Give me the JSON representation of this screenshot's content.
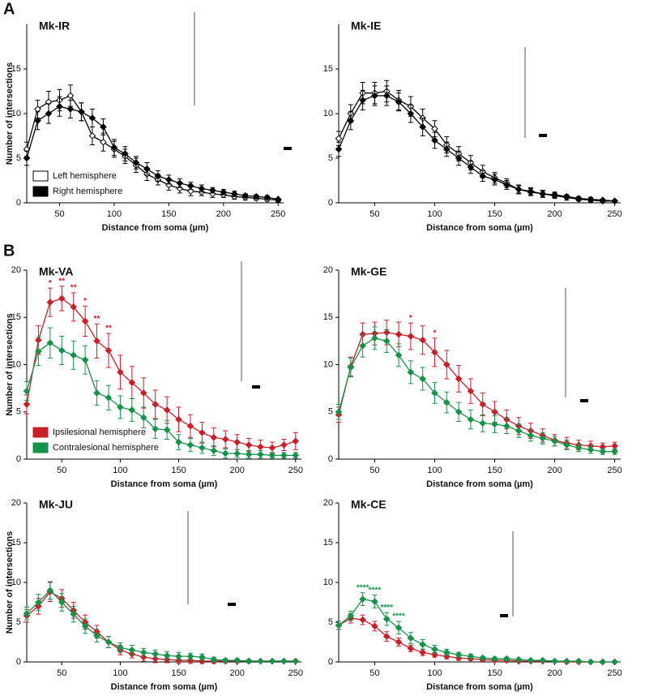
{
  "figure": {
    "panel_labels": [
      "A",
      "B"
    ]
  },
  "chart_data": [
    {
      "type": "line",
      "title": "Mk-IR",
      "xlabel": "Distance from soma (µm)",
      "ylabel": "Number of intersections",
      "x": [
        20,
        30,
        40,
        50,
        60,
        70,
        80,
        90,
        100,
        110,
        120,
        130,
        140,
        150,
        160,
        170,
        180,
        190,
        200,
        210,
        220,
        230,
        240,
        250
      ],
      "xlim": [
        20,
        255
      ],
      "ylim": [
        0,
        20
      ],
      "xticks": [
        50,
        100,
        150,
        200,
        250
      ],
      "yticks": [
        0,
        5,
        10,
        15
      ],
      "legend": "lower-left",
      "series": [
        {
          "name": "Left hemisphere",
          "color": "#ffffff",
          "line_color": "#000000",
          "values": [
            6.0,
            10.5,
            11.3,
            11.5,
            12.0,
            10.2,
            7.5,
            6.8,
            6.0,
            5.2,
            4.2,
            3.2,
            2.6,
            2.0,
            1.6,
            1.3,
            1.2,
            1.0,
            0.9,
            0.7,
            0.6,
            0.5,
            0.4,
            0.3
          ],
          "errors": [
            0.8,
            1.0,
            1.2,
            1.2,
            1.2,
            1.0,
            1.0,
            1.0,
            0.9,
            0.8,
            0.8,
            0.7,
            0.6,
            0.6,
            0.5,
            0.5,
            0.4,
            0.4,
            0.3,
            0.3,
            0.3,
            0.2,
            0.2,
            0.2
          ]
        },
        {
          "name": "Right hemisphere",
          "color": "#000000",
          "line_color": "#000000",
          "values": [
            5.0,
            9.2,
            10.0,
            10.8,
            10.5,
            10.2,
            9.5,
            8.5,
            6.2,
            5.5,
            4.5,
            3.8,
            3.0,
            2.6,
            2.2,
            1.9,
            1.6,
            1.4,
            1.2,
            1.0,
            0.8,
            0.7,
            0.6,
            0.4
          ],
          "errors": [
            0.8,
            1.0,
            1.1,
            1.1,
            1.0,
            1.0,
            1.0,
            0.9,
            0.9,
            0.8,
            0.7,
            0.7,
            0.6,
            0.5,
            0.5,
            0.4,
            0.4,
            0.3,
            0.3,
            0.3,
            0.2,
            0.2,
            0.2,
            0.1
          ]
        }
      ]
    },
    {
      "type": "line",
      "title": "Mk-IE",
      "xlabel": "Distance from soma (µm)",
      "x": [
        20,
        30,
        40,
        50,
        60,
        70,
        80,
        90,
        100,
        110,
        120,
        130,
        140,
        150,
        160,
        170,
        180,
        190,
        200,
        210,
        220,
        230,
        240,
        250
      ],
      "xlim": [
        20,
        255
      ],
      "ylim": [
        0,
        20
      ],
      "xticks": [
        50,
        100,
        150,
        200,
        250
      ],
      "yticks": [
        0,
        5,
        10,
        15
      ],
      "series": [
        {
          "color": "#ffffff",
          "line_color": "#000000",
          "values": [
            7.2,
            10.0,
            12.3,
            12.3,
            12.5,
            11.5,
            10.8,
            9.5,
            8.3,
            6.5,
            5.5,
            4.5,
            3.5,
            2.8,
            2.2,
            1.5,
            1.2,
            1.0,
            0.8,
            0.6,
            0.4,
            0.3,
            0.2,
            0.2
          ],
          "errors": [
            0.8,
            1.0,
            1.2,
            1.2,
            1.2,
            1.1,
            1.1,
            1.0,
            0.9,
            0.9,
            0.8,
            0.8,
            0.7,
            0.6,
            0.5,
            0.5,
            0.4,
            0.4,
            0.3,
            0.3,
            0.2,
            0.2,
            0.2,
            0.1
          ]
        },
        {
          "color": "#000000",
          "line_color": "#000000",
          "values": [
            6.0,
            9.2,
            11.5,
            12.0,
            12.0,
            11.3,
            10.0,
            8.5,
            7.0,
            6.0,
            5.0,
            4.0,
            3.0,
            2.6,
            2.0,
            1.5,
            1.3,
            1.0,
            0.9,
            0.7,
            0.5,
            0.4,
            0.3,
            0.2
          ],
          "errors": [
            0.8,
            1.0,
            1.1,
            1.1,
            1.1,
            1.0,
            1.0,
            1.0,
            0.9,
            0.8,
            0.8,
            0.7,
            0.6,
            0.6,
            0.5,
            0.4,
            0.4,
            0.3,
            0.3,
            0.2,
            0.2,
            0.2,
            0.1,
            0.1
          ]
        }
      ]
    },
    {
      "type": "line",
      "title": "Mk-VA",
      "xlabel": "Distance from soma (µm)",
      "ylabel": "Number of intersections",
      "x": [
        20,
        30,
        40,
        50,
        60,
        70,
        80,
        90,
        100,
        110,
        120,
        130,
        140,
        150,
        160,
        170,
        180,
        190,
        200,
        210,
        220,
        230,
        240,
        250
      ],
      "xlim": [
        20,
        255
      ],
      "ylim": [
        0,
        20
      ],
      "xticks": [
        50,
        100,
        150,
        200,
        250
      ],
      "yticks": [
        0,
        5,
        10,
        15,
        20
      ],
      "legend": "lower-left",
      "series": [
        {
          "name": "Ipsilesional hemisphere",
          "color": "#c8202a",
          "line_color": "#c8202a",
          "values": [
            5.8,
            12.6,
            16.6,
            17.0,
            16.1,
            14.6,
            12.5,
            11.5,
            9.2,
            8.1,
            7.0,
            5.8,
            5.2,
            4.2,
            3.5,
            2.8,
            2.3,
            2.1,
            1.8,
            1.5,
            1.3,
            1.2,
            1.5,
            1.9
          ],
          "errors": [
            1.0,
            1.5,
            1.5,
            1.3,
            1.5,
            1.6,
            1.8,
            1.8,
            1.8,
            1.7,
            1.6,
            1.5,
            1.4,
            1.3,
            1.2,
            1.1,
            1.0,
            0.9,
            0.8,
            0.7,
            0.7,
            0.6,
            0.6,
            0.9
          ],
          "significance": [
            null,
            null,
            "*",
            "**",
            "**",
            "*",
            "**",
            "**",
            null,
            null,
            null,
            null,
            null,
            null,
            null,
            null,
            null,
            null,
            null,
            null,
            null,
            null,
            null,
            null
          ]
        },
        {
          "name": "Contralesional hemisphere",
          "color": "#17924a",
          "line_color": "#17924a",
          "values": [
            7.2,
            11.4,
            12.3,
            11.5,
            11.0,
            10.5,
            7.0,
            6.5,
            5.5,
            5.2,
            4.4,
            3.2,
            3.1,
            1.8,
            1.5,
            1.2,
            0.9,
            0.6,
            0.6,
            0.5,
            0.5,
            0.4,
            0.4,
            0.4
          ],
          "errors": [
            1.0,
            1.5,
            1.6,
            1.5,
            1.5,
            1.5,
            1.3,
            1.3,
            1.2,
            1.2,
            1.1,
            1.0,
            1.0,
            0.8,
            0.7,
            0.6,
            0.5,
            0.5,
            0.4,
            0.4,
            0.4,
            0.3,
            0.3,
            0.3
          ]
        }
      ]
    },
    {
      "type": "line",
      "title": "Mk-GE",
      "xlabel": "Distance from soma (µm)",
      "x": [
        20,
        30,
        40,
        50,
        60,
        70,
        80,
        90,
        100,
        110,
        120,
        130,
        140,
        150,
        160,
        170,
        180,
        190,
        200,
        210,
        220,
        230,
        240,
        250
      ],
      "xlim": [
        20,
        255
      ],
      "ylim": [
        0,
        20
      ],
      "xticks": [
        50,
        100,
        150,
        200,
        250
      ],
      "yticks": [
        0,
        5,
        10,
        15,
        20
      ],
      "series": [
        {
          "color": "#c8202a",
          "line_color": "#c8202a",
          "values": [
            4.7,
            9.8,
            13.2,
            13.3,
            13.4,
            13.2,
            13.0,
            12.6,
            11.3,
            10.0,
            8.5,
            7.2,
            5.8,
            5.0,
            4.2,
            3.5,
            3.0,
            2.5,
            2.0,
            1.7,
            1.5,
            1.4,
            1.3,
            1.4
          ],
          "errors": [
            0.8,
            1.0,
            1.2,
            1.2,
            1.3,
            1.3,
            1.4,
            1.5,
            1.5,
            1.5,
            1.4,
            1.3,
            1.2,
            1.1,
            1.0,
            0.9,
            0.8,
            0.7,
            0.6,
            0.6,
            0.5,
            0.5,
            0.4,
            0.4
          ],
          "significance": [
            null,
            null,
            null,
            null,
            null,
            null,
            "*",
            null,
            "*",
            null,
            null,
            null,
            null,
            null,
            null,
            null,
            null,
            null,
            null,
            null,
            null,
            null,
            null,
            null
          ]
        },
        {
          "color": "#17924a",
          "line_color": "#17924a",
          "values": [
            5.0,
            9.7,
            12.0,
            12.8,
            12.5,
            11.0,
            9.2,
            8.5,
            7.0,
            6.0,
            5.0,
            4.2,
            3.8,
            3.7,
            3.5,
            3.0,
            2.5,
            2.2,
            1.9,
            1.5,
            1.2,
            1.0,
            0.8,
            0.8
          ],
          "errors": [
            0.8,
            1.0,
            1.2,
            1.2,
            1.2,
            1.2,
            1.2,
            1.2,
            1.1,
            1.1,
            1.0,
            1.0,
            0.9,
            0.9,
            0.8,
            0.7,
            0.6,
            0.6,
            0.5,
            0.5,
            0.4,
            0.4,
            0.3,
            0.3
          ]
        }
      ]
    },
    {
      "type": "line",
      "title": "Mk-JU",
      "xlabel": "Distance from soma (µm)",
      "ylabel": "Number of intersections",
      "x": [
        20,
        30,
        40,
        50,
        60,
        70,
        80,
        90,
        100,
        110,
        120,
        130,
        140,
        150,
        160,
        170,
        180,
        190,
        200,
        210,
        220,
        230,
        240,
        250
      ],
      "xlim": [
        20,
        255
      ],
      "ylim": [
        0,
        20
      ],
      "xticks": [
        50,
        100,
        150,
        200,
        250
      ],
      "yticks": [
        0,
        5,
        10,
        15,
        20
      ],
      "series": [
        {
          "color": "#c8202a",
          "line_color": "#c8202a",
          "values": [
            5.8,
            7.0,
            8.8,
            8.0,
            6.5,
            5.0,
            3.8,
            2.5,
            1.5,
            1.0,
            0.6,
            0.4,
            0.3,
            0.2,
            0.2,
            0.1,
            0.1,
            0.1,
            0.1,
            0.1,
            0.1,
            0.1,
            0.1,
            0.1
          ],
          "errors": [
            0.8,
            1.0,
            1.2,
            1.1,
            1.0,
            0.9,
            0.8,
            0.7,
            0.6,
            0.5,
            0.5,
            0.5,
            0.4,
            0.4,
            0.4,
            0.3,
            0.3,
            0.2,
            0.2,
            0.2,
            0.1,
            0.1,
            0.1,
            0.1
          ]
        },
        {
          "color": "#17924a",
          "line_color": "#17924a",
          "values": [
            6.1,
            7.5,
            9.0,
            7.5,
            6.0,
            4.5,
            3.3,
            2.5,
            1.8,
            1.5,
            1.2,
            1.0,
            0.8,
            0.7,
            0.7,
            0.6,
            0.3,
            0.2,
            0.2,
            0.1,
            0.1,
            0.1,
            0.1,
            0.1
          ],
          "errors": [
            0.8,
            1.0,
            1.1,
            1.1,
            1.0,
            0.9,
            0.8,
            0.7,
            0.6,
            0.6,
            0.5,
            0.5,
            0.5,
            0.5,
            0.4,
            0.4,
            0.3,
            0.2,
            0.2,
            0.2,
            0.1,
            0.1,
            0.1,
            0.1
          ]
        }
      ]
    },
    {
      "type": "line",
      "title": "Mk-CE",
      "xlabel": "Distance from soma (µm)",
      "x": [
        20,
        30,
        40,
        50,
        60,
        70,
        80,
        90,
        100,
        110,
        120,
        130,
        140,
        150,
        160,
        170,
        180,
        190,
        200,
        210,
        220,
        230,
        240,
        250
      ],
      "xlim": [
        20,
        255
      ],
      "ylim": [
        0,
        20
      ],
      "xticks": [
        50,
        100,
        150,
        200,
        250
      ],
      "yticks": [
        0,
        5,
        10,
        15,
        20
      ],
      "series": [
        {
          "color": "#c8202a",
          "line_color": "#c8202a",
          "values": [
            4.6,
            5.5,
            5.3,
            4.5,
            3.2,
            2.5,
            1.7,
            1.2,
            0.9,
            0.7,
            0.5,
            0.4,
            0.3,
            0.2,
            0.2,
            0.1,
            0.1,
            0.1,
            0.1,
            0.0,
            0.0,
            0.0,
            0.0,
            0.0
          ],
          "errors": [
            0.5,
            0.6,
            0.6,
            0.6,
            0.6,
            0.5,
            0.4,
            0.4,
            0.3,
            0.3,
            0.3,
            0.2,
            0.2,
            0.2,
            0.1,
            0.1,
            0.1,
            0.1,
            0.1,
            0.1,
            0.1,
            0.1,
            0.1,
            0.1
          ]
        },
        {
          "color": "#17924a",
          "line_color": "#17924a",
          "values": [
            4.6,
            5.8,
            7.9,
            7.6,
            5.4,
            4.3,
            3.0,
            2.2,
            1.6,
            1.2,
            0.9,
            0.7,
            0.5,
            0.4,
            0.4,
            0.3,
            0.2,
            0.2,
            0.1,
            0.1,
            0.1,
            0.0,
            0.0,
            0.0
          ],
          "errors": [
            0.5,
            0.6,
            0.8,
            0.8,
            0.8,
            0.8,
            0.7,
            0.6,
            0.5,
            0.4,
            0.3,
            0.3,
            0.2,
            0.2,
            0.2,
            0.1,
            0.1,
            0.1,
            0.1,
            0.1,
            0.1,
            0.1,
            0.1,
            0.1
          ],
          "significance": [
            null,
            null,
            "****",
            "****",
            "****",
            "****",
            null,
            null,
            null,
            null,
            null,
            null,
            null,
            null,
            null,
            null,
            null,
            null,
            null,
            null,
            null,
            null,
            null,
            null
          ]
        }
      ]
    }
  ]
}
